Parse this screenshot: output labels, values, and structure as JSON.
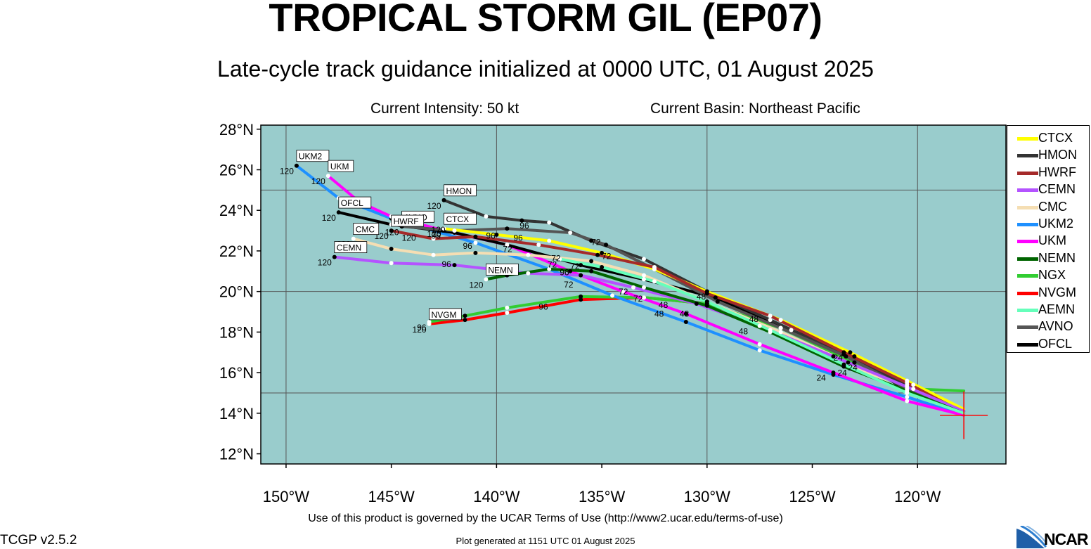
{
  "title": "TROPICAL STORM GIL (EP07)",
  "subtitle": "Late-cycle track guidance initialized at 0000 UTC, 01 August 2025",
  "current_intensity": "Current Intensity: 50 kt",
  "current_basin": "Current Basin: Northeast Pacific",
  "footer_terms": "Use of this product is governed by the UCAR Terms of Use (http://www2.ucar.edu/terms-of-use)",
  "plot_generated": "Plot generated at 1151 UTC   01 August 2025",
  "version": "TCGP v2.5.2",
  "logo_text": "NCAR",
  "map": {
    "lon_range": [
      -151.2,
      -115.8
    ],
    "lat_range": [
      11.5,
      28.2
    ],
    "lat_ticks": [
      {
        "value": 28,
        "label": "28°N"
      },
      {
        "value": 26,
        "label": "26°N"
      },
      {
        "value": 24,
        "label": "24°N"
      },
      {
        "value": 22,
        "label": "22°N"
      },
      {
        "value": 20,
        "label": "20°N"
      },
      {
        "value": 18,
        "label": "18°N"
      },
      {
        "value": 16,
        "label": "16°N"
      },
      {
        "value": 14,
        "label": "14°N"
      },
      {
        "value": 12,
        "label": "12°N"
      }
    ],
    "lon_ticks": [
      {
        "value": -150,
        "label": "150°W"
      },
      {
        "value": -145,
        "label": "145°W"
      },
      {
        "value": -140,
        "label": "140°W"
      },
      {
        "value": -135,
        "label": "135°W"
      },
      {
        "value": -130,
        "label": "130°W"
      },
      {
        "value": -125,
        "label": "125°W"
      },
      {
        "value": -120,
        "label": "120°W"
      }
    ],
    "grid_lons": [
      -150,
      -140,
      -130,
      -120
    ],
    "grid_lats": [
      15,
      20,
      25
    ],
    "ocean_color": "#99cccc",
    "initial_position": {
      "lon": -117.8,
      "lat": 13.9
    }
  },
  "legend": [
    {
      "name": "CTCX",
      "color": "#ffff00"
    },
    {
      "name": "HMON",
      "color": "#333333"
    },
    {
      "name": "HWRF",
      "color": "#a52a2a"
    },
    {
      "name": "CEMN",
      "color": "#b453ff"
    },
    {
      "name": "CMC",
      "color": "#f5deb3"
    },
    {
      "name": "UKM2",
      "color": "#1e90ff"
    },
    {
      "name": "UKM",
      "color": "#ff00ff"
    },
    {
      "name": "NEMN",
      "color": "#006400"
    },
    {
      "name": "NGX",
      "color": "#32cd32"
    },
    {
      "name": "NVGM",
      "color": "#ff0000"
    },
    {
      "name": "AEMN",
      "color": "#66ffbb"
    },
    {
      "name": "AVNO",
      "color": "#555555"
    },
    {
      "name": "OFCL",
      "color": "#000000"
    }
  ],
  "tracks": [
    {
      "name": "NVGM",
      "color": "#ff0000",
      "points": [
        [
          -117.8,
          13.9
        ],
        [
          -120.2,
          15.4
        ],
        [
          -123,
          16.5
        ],
        [
          -126.5,
          18.2
        ],
        [
          -130,
          19.4
        ],
        [
          -133,
          19.7
        ],
        [
          -136,
          19.6
        ],
        [
          -139.5,
          18.95
        ],
        [
          -141.5,
          18.6
        ],
        [
          -143.2,
          18.4
        ]
      ],
      "label": "NVGM",
      "end_hour": "120"
    },
    {
      "name": "NGX",
      "color": "#32cd32",
      "points": [
        [
          -117.8,
          15.1
        ],
        [
          -120.2,
          15.2
        ],
        [
          -123,
          16.5
        ],
        [
          -126.5,
          18.2
        ],
        [
          -130,
          19.4
        ],
        [
          -133,
          19.7
        ],
        [
          -136,
          19.75
        ],
        [
          -139.5,
          19.2
        ],
        [
          -141.5,
          18.8
        ],
        [
          -143.2,
          18.5
        ]
      ],
      "label": "",
      "end_hour": "96"
    },
    {
      "name": "UKM2",
      "color": "#1e90ff",
      "points": [
        [
          -117.8,
          13.9
        ],
        [
          -120.5,
          14.8
        ],
        [
          -124,
          15.9
        ],
        [
          -127.5,
          17.1
        ],
        [
          -131,
          18.5
        ],
        [
          -134.5,
          19.8
        ],
        [
          -137.5,
          21.1
        ],
        [
          -141,
          22.4
        ],
        [
          -145,
          23.6
        ],
        [
          -147.5,
          24.6
        ],
        [
          -149.5,
          26.2
        ]
      ],
      "label": "UKM2",
      "end_hour": "120"
    },
    {
      "name": "UKM",
      "color": "#ff00ff",
      "points": [
        [
          -117.8,
          13.9
        ],
        [
          -120.5,
          14.6
        ],
        [
          -124,
          16
        ],
        [
          -127.5,
          17.4
        ],
        [
          -131,
          18.9
        ],
        [
          -134,
          20
        ],
        [
          -136.5,
          21
        ],
        [
          -139.5,
          22.3
        ],
        [
          -142.5,
          23
        ],
        [
          -145,
          23.7
        ],
        [
          -146.5,
          24.4
        ],
        [
          -148,
          25.7
        ]
      ],
      "label": "UKM",
      "end_hour": "120"
    },
    {
      "name": "OFCL",
      "color": "#000000",
      "points": [
        [
          -117.8,
          14.1
        ],
        [
          -120.5,
          15.1
        ],
        [
          -123,
          16.8
        ],
        [
          -126,
          18.1
        ],
        [
          -129.6,
          19.7
        ],
        [
          -133,
          20.6
        ],
        [
          -136,
          21.3
        ],
        [
          -139.5,
          22.3
        ],
        [
          -142,
          22.9
        ],
        [
          -145,
          23.3
        ],
        [
          -147.5,
          23.9
        ]
      ],
      "label": "OFCL",
      "end_hour": "120"
    },
    {
      "name": "HMON",
      "color": "#333333",
      "points": [
        [
          -117.8,
          14.1
        ],
        [
          -120.5,
          15.4
        ],
        [
          -123.5,
          16.9
        ],
        [
          -127,
          18.6
        ],
        [
          -130,
          20
        ],
        [
          -133,
          21.6
        ],
        [
          -135.5,
          22.5
        ],
        [
          -137.5,
          23.4
        ],
        [
          -138.8,
          23.5
        ],
        [
          -140.5,
          23.7
        ],
        [
          -142.5,
          24.5
        ]
      ],
      "label": "HMON",
      "end_hour": "120"
    },
    {
      "name": "AVNO",
      "color": "#555555",
      "points": [
        [
          -117.8,
          14.1
        ],
        [
          -120.5,
          15.2
        ],
        [
          -123.4,
          16.8
        ],
        [
          -126.5,
          18.2
        ],
        [
          -129.5,
          19.5
        ],
        [
          -132.5,
          21.1
        ],
        [
          -134.8,
          22.3
        ],
        [
          -136.5,
          22.9
        ],
        [
          -139.5,
          23.1
        ],
        [
          -142,
          23
        ],
        [
          -144.5,
          23.2
        ]
      ],
      "label": "AVNO",
      "end_hour": "120"
    },
    {
      "name": "CTCX",
      "color": "#ffff00",
      "points": [
        [
          -117.8,
          14.2
        ],
        [
          -120.5,
          15.6
        ],
        [
          -123.2,
          17
        ],
        [
          -126.5,
          18.6
        ],
        [
          -130,
          20
        ],
        [
          -132.5,
          21.1
        ],
        [
          -135,
          21.9
        ],
        [
          -137.5,
          22.5
        ],
        [
          -140,
          22.8
        ],
        [
          -142.5,
          23.1
        ]
      ],
      "label": "CTCX",
      "end_hour": "120"
    },
    {
      "name": "HWRF",
      "color": "#a52a2a",
      "points": [
        [
          -117.8,
          14
        ],
        [
          -120.5,
          15.5
        ],
        [
          -123.5,
          17
        ],
        [
          -127,
          18.8
        ],
        [
          -130,
          19.9
        ],
        [
          -132.5,
          21.2
        ],
        [
          -135.2,
          21.8
        ],
        [
          -138,
          22.3
        ],
        [
          -141,
          22.7
        ],
        [
          -143,
          22.6
        ],
        [
          -145,
          23
        ]
      ],
      "label": "HWRF",
      "end_hour": "120"
    },
    {
      "name": "CMC",
      "color": "#f5deb3",
      "points": [
        [
          -117.8,
          14
        ],
        [
          -120.5,
          15
        ],
        [
          -123.3,
          16.5
        ],
        [
          -126.5,
          18
        ],
        [
          -130,
          19.5
        ],
        [
          -133,
          20.8
        ],
        [
          -135.5,
          21.5
        ],
        [
          -138.5,
          21.8
        ],
        [
          -141,
          21.9
        ],
        [
          -143,
          21.8
        ],
        [
          -145,
          22.1
        ],
        [
          -146.8,
          22.6
        ]
      ],
      "label": "CMC",
      "end_hour": "120"
    },
    {
      "name": "CEMN",
      "color": "#b453ff",
      "points": [
        [
          -117.8,
          14.1
        ],
        [
          -120.5,
          15.3
        ],
        [
          -124,
          16.8
        ],
        [
          -127.5,
          18.3
        ],
        [
          -130.5,
          19.4
        ],
        [
          -133.5,
          20.2
        ],
        [
          -136,
          20.8
        ],
        [
          -138.5,
          20.9
        ],
        [
          -142,
          21.3
        ],
        [
          -145,
          21.4
        ],
        [
          -147.7,
          21.7
        ]
      ],
      "label": "CEMN",
      "end_hour": "120"
    },
    {
      "name": "NEMN",
      "color": "#006400",
      "points": [
        [
          -117.8,
          14
        ],
        [
          -120.5,
          15.1
        ],
        [
          -123.5,
          16.3
        ],
        [
          -127,
          18
        ],
        [
          -130,
          19.3
        ],
        [
          -133,
          20.2
        ],
        [
          -135.5,
          21
        ],
        [
          -137.5,
          21.1
        ],
        [
          -139.5,
          20.8
        ],
        [
          -140.5,
          20.6
        ]
      ],
      "label": "NEMN",
      "end_hour": "120"
    },
    {
      "name": "AEMN",
      "color": "#66ffbb",
      "points": [
        [
          -117.8,
          14
        ],
        [
          -120.5,
          15
        ],
        [
          -123.5,
          16.4
        ],
        [
          -127,
          18.1
        ],
        [
          -130,
          19.5
        ],
        [
          -132.5,
          20.5
        ],
        [
          -135,
          21.2
        ],
        [
          -137,
          21.6
        ]
      ],
      "label": "",
      "end_hour": "72"
    }
  ],
  "hour_labels": [
    {
      "text": "24",
      "lon": -124.8,
      "lat": 15.6
    },
    {
      "text": "24",
      "lon": -123.8,
      "lat": 15.85
    },
    {
      "text": "24",
      "lon": -123.3,
      "lat": 16.1
    },
    {
      "text": "24",
      "lon": -124,
      "lat": 16.6
    },
    {
      "text": "48",
      "lon": -128.5,
      "lat": 17.9
    },
    {
      "text": "48",
      "lon": -131.3,
      "lat": 18.75
    },
    {
      "text": "48",
      "lon": -132.5,
      "lat": 18.75
    },
    {
      "text": "48",
      "lon": -132.3,
      "lat": 19.2
    },
    {
      "text": "48",
      "lon": -130.5,
      "lat": 19.6
    },
    {
      "text": "48",
      "lon": -128,
      "lat": 18.5
    },
    {
      "text": "72",
      "lon": -133.5,
      "lat": 19.5
    },
    {
      "text": "72",
      "lon": -134.2,
      "lat": 19.85
    },
    {
      "text": "72",
      "lon": -136.8,
      "lat": 20.2
    },
    {
      "text": "72",
      "lon": -137.4,
      "lat": 21.5
    },
    {
      "text": "72",
      "lon": -139.7,
      "lat": 21.95
    },
    {
      "text": "72",
      "lon": -140,
      "lat": 21
    },
    {
      "text": "72",
      "lon": -136.5,
      "lat": 21.1
    },
    {
      "text": "72",
      "lon": -135.5,
      "lat": 22.3
    },
    {
      "text": "72",
      "lon": -135,
      "lat": 21.6
    },
    {
      "text": "96",
      "lon": -138,
      "lat": 19.1
    },
    {
      "text": "96",
      "lon": -142.6,
      "lat": 21.2
    },
    {
      "text": "96",
      "lon": -141.6,
      "lat": 22.1
    },
    {
      "text": "96",
      "lon": -140.5,
      "lat": 22.6
    },
    {
      "text": "96",
      "lon": -139.2,
      "lat": 22.5
    },
    {
      "text": "96",
      "lon": -138.9,
      "lat": 23.1
    },
    {
      "text": "96",
      "lon": -143.1,
      "lat": 22.6
    },
    {
      "text": "96",
      "lon": -137,
      "lat": 20.8
    },
    {
      "text": "120",
      "lon": -143.1,
      "lat": 22.9
    },
    {
      "text": "120",
      "lon": -144.5,
      "lat": 22.5
    }
  ]
}
